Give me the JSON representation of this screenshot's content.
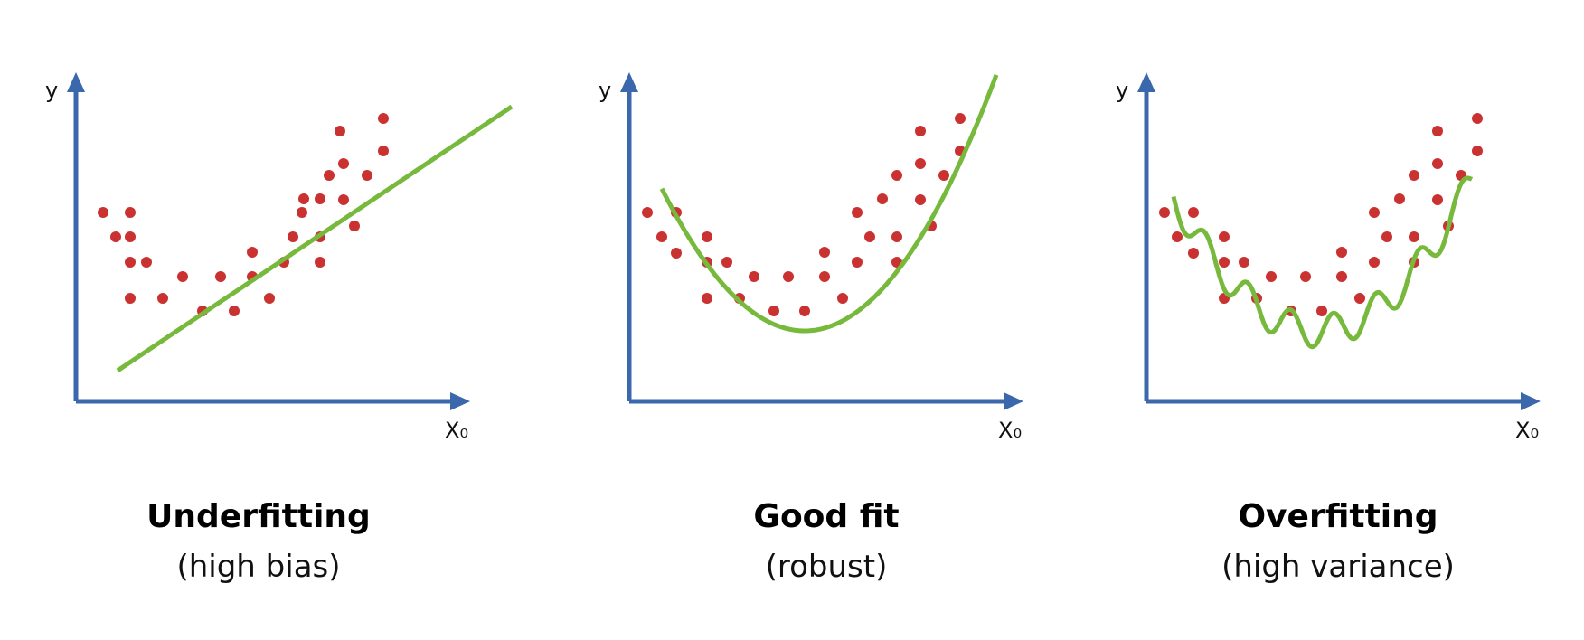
{
  "colors": {
    "axis": "#3b67ad",
    "point": "#c93231",
    "fit": "#77b93c"
  },
  "chart_data": [
    {
      "type": "scatter",
      "title": "Underfitting",
      "subtitle": "(high bias)",
      "xlabel": "X₀",
      "ylabel": "y",
      "fit": "linear",
      "points": {
        "x": [
          0.7,
          1.35,
          2.0,
          2.0,
          3.2,
          3.2,
          3.2,
          4.0,
          4.7,
          4.9,
          5.7,
          6.5,
          7.7,
          7.7,
          8.7,
          8.7,
          9.3,
          10.6,
          10.8,
          10.8,
          11.4,
          11.4,
          11.4,
          12.1,
          12.2,
          12.8,
          12.8,
          13.2,
          13.7,
          15.2,
          17.6,
          17.6,
          17.6,
          17.6,
          18.0,
          18.3,
          18.4,
          19.2,
          19.6,
          21.6,
          21.6,
          22.3,
          23.9,
          24.5,
          25.0,
          25.0
        ],
        "y": [
          5.4,
          4.6,
          5.4,
          2.4,
          1.95,
          1.8,
          2.0,
          1.9,
          1.9,
          3.9,
          1.4,
          1.4,
          2.9,
          1.8,
          4.0,
          1.4,
          2.6,
          3.5,
          5.0,
          3.2,
          6.6,
          2.0,
          3.9,
          7.0,
          4.8,
          2.0,
          5.4,
          4.4,
          3.6,
          4.8,
          3.2,
          6.0,
          5.4,
          4.0,
          6.0,
          4.9,
          4.1,
          4.4,
          6.0,
          7.5,
          6.2,
          6.2,
          7.0,
          6.6,
          6.0,
          6.2
        ]
      },
      "curve_x": [
        3,
        31
      ],
      "curve_y": [
        1.0,
        9.7
      ]
    },
    {
      "type": "scatter",
      "title": "Good fit",
      "subtitle": "(robust)",
      "xlabel": "X₀",
      "ylabel": "y",
      "fit": "quadratic",
      "curve_x": [
        2,
        30
      ],
      "curve_y": [
        5.5,
        9.7
      ]
    },
    {
      "type": "scatter",
      "title": "Overfitting",
      "subtitle": "(high variance)",
      "xlabel": "X₀",
      "ylabel": "y",
      "fit": "wiggly"
    }
  ]
}
